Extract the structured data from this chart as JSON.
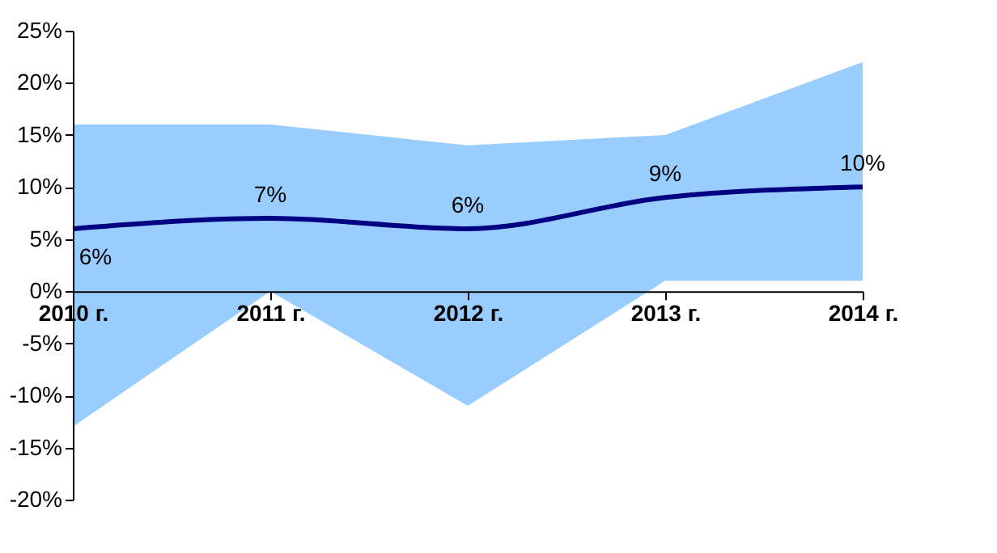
{
  "chart_data": {
    "type": "line",
    "categories": [
      "2010 г.",
      "2011 г.",
      "2012 г.",
      "2013 г.",
      "2014 г."
    ],
    "series": [
      {
        "color": "#000080",
        "values": [
          6,
          7,
          6,
          9,
          10
        ],
        "value_labels": [
          "6%",
          "7%",
          "6%",
          "9%",
          "10%"
        ],
        "lower": [
          -13,
          0,
          -11,
          1,
          1
        ],
        "upper": [
          16,
          16,
          14,
          15,
          22
        ]
      }
    ],
    "ylim": [
      -20,
      25
    ],
    "yticks": [
      {
        "value": -20,
        "label": "-20%"
      },
      {
        "value": -15,
        "label": "-15%"
      },
      {
        "value": -10,
        "label": "-10%"
      },
      {
        "value": -5,
        "label": "-5%"
      },
      {
        "value": 0,
        "label": "0%"
      },
      {
        "value": 5,
        "label": "5%"
      },
      {
        "value": 10,
        "label": "10%"
      },
      {
        "value": 15,
        "label": "15%"
      },
      {
        "value": 20,
        "label": "20%"
      },
      {
        "value": 25,
        "label": "25%"
      }
    ],
    "marker": "none",
    "line_style": "solid"
  }
}
